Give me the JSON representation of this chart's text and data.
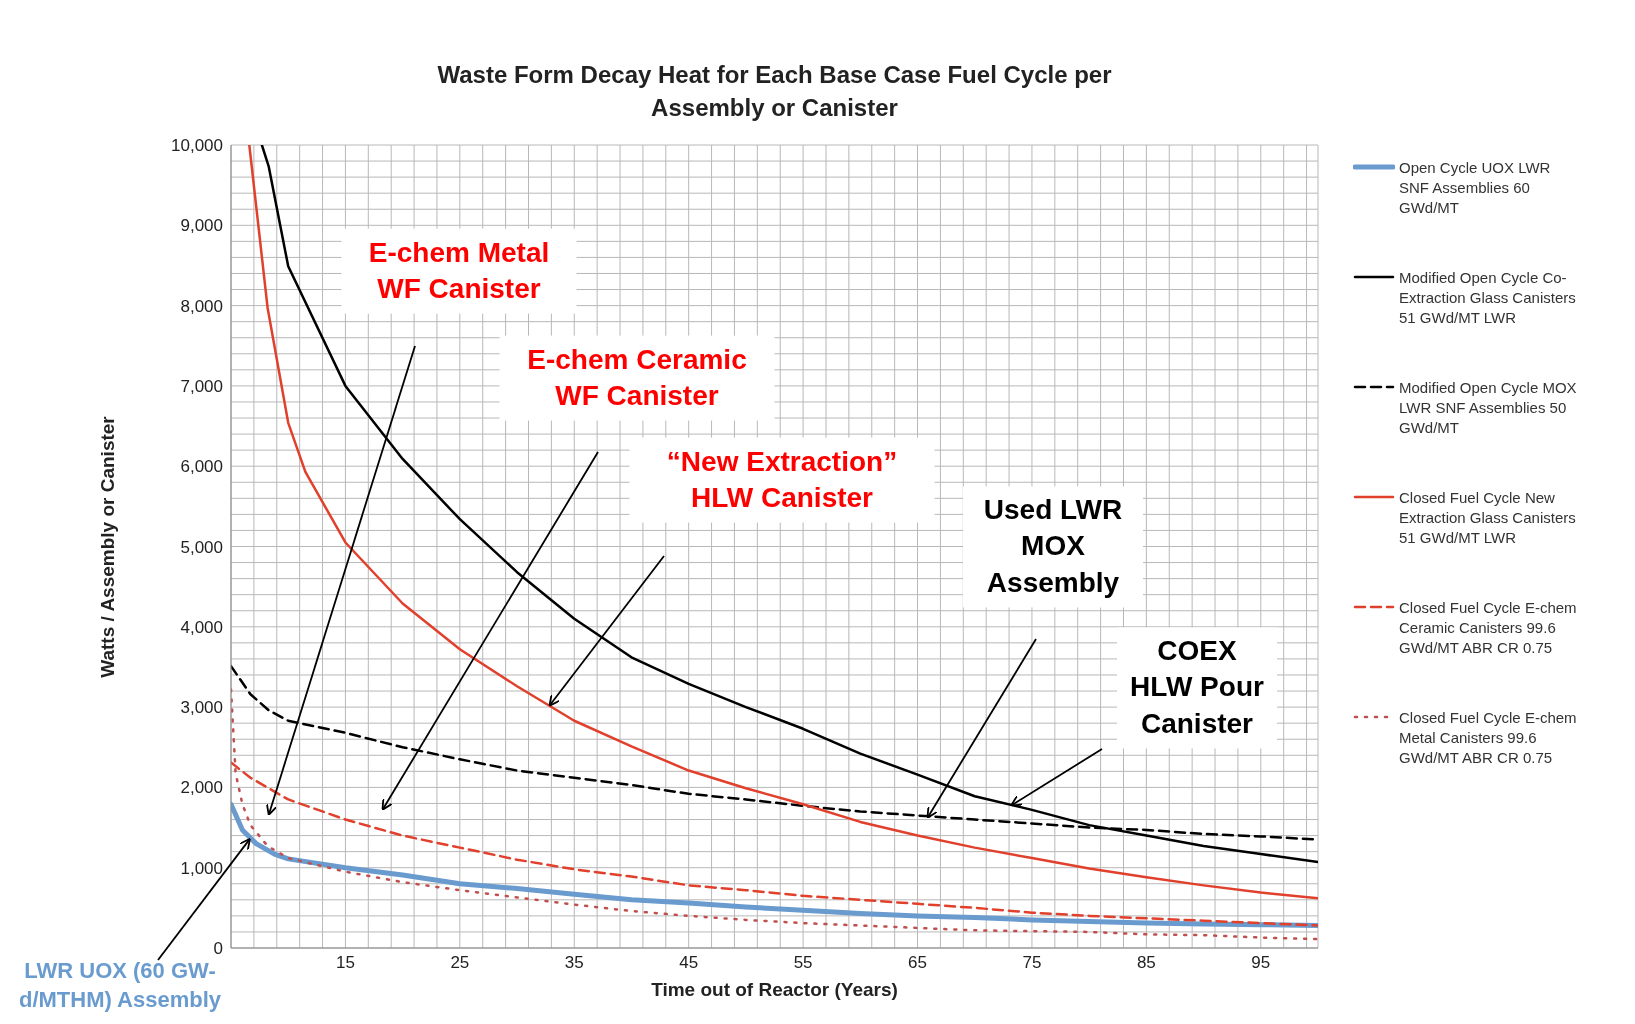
{
  "chart_data": {
    "type": "line",
    "title": "Waste Form Decay Heat for Each Base Case Fuel Cycle per Assembly or Canister",
    "xlabel": "Time out of Reactor (Years)",
    "ylabel": "Watts / Assembly or Canister",
    "xlim": [
      5,
      100
    ],
    "xticks": [
      {
        "value": 7,
        "label": null
      },
      {
        "value": 9,
        "label": null
      },
      {
        "value": 11,
        "label": null
      },
      {
        "value": 13,
        "label": null
      },
      15,
      {
        "value": 17,
        "label": null
      },
      {
        "value": 19,
        "label": null
      },
      {
        "value": 21,
        "label": null
      },
      {
        "value": 23,
        "label": null
      },
      25,
      {
        "value": 27,
        "label": null
      },
      {
        "value": 29,
        "label": null
      },
      {
        "value": 31,
        "label": null
      },
      {
        "value": 33,
        "label": null
      },
      35,
      {
        "value": 37,
        "label": null
      },
      {
        "value": 39,
        "label": null
      },
      {
        "value": 41,
        "label": null
      },
      {
        "value": 43,
        "label": null
      },
      45,
      {
        "value": 47,
        "label": null
      },
      {
        "value": 49,
        "label": null
      },
      {
        "value": 51,
        "label": null
      },
      {
        "value": 53,
        "label": null
      },
      55,
      {
        "value": 57,
        "label": null
      },
      {
        "value": 59,
        "label": null
      },
      {
        "value": 61,
        "label": null
      },
      {
        "value": 63,
        "label": null
      },
      65,
      {
        "value": 67,
        "label": null
      },
      {
        "value": 69,
        "label": null
      },
      {
        "value": 71,
        "label": null
      },
      {
        "value": 73,
        "label": null
      },
      75,
      {
        "value": 77,
        "label": null
      },
      {
        "value": 79,
        "label": null
      },
      {
        "value": 81,
        "label": null
      },
      {
        "value": 83,
        "label": null
      },
      85,
      {
        "value": 87,
        "label": null
      },
      {
        "value": 89,
        "label": null
      },
      {
        "value": 91,
        "label": null
      },
      {
        "value": 93,
        "label": null
      },
      95,
      {
        "value": 97,
        "label": null
      },
      {
        "value": 99,
        "label": null
      }
    ],
    "ylim": [
      0,
      10000
    ],
    "yticks": [
      0,
      {
        "value": 200,
        "label": null
      },
      {
        "value": 400,
        "label": null
      },
      {
        "value": 600,
        "label": null
      },
      {
        "value": 800,
        "label": null
      },
      {
        "value": 1000,
        "label": "1,000"
      },
      {
        "value": 1200,
        "label": null
      },
      {
        "value": 1400,
        "label": null
      },
      {
        "value": 1600,
        "label": null
      },
      {
        "value": 1800,
        "label": null
      },
      {
        "value": 2000,
        "label": "2,000"
      },
      {
        "value": 2200,
        "label": null
      },
      {
        "value": 2400,
        "label": null
      },
      {
        "value": 2600,
        "label": null
      },
      {
        "value": 2800,
        "label": null
      },
      {
        "value": 3000,
        "label": "3,000"
      },
      {
        "value": 3200,
        "label": null
      },
      {
        "value": 3400,
        "label": null
      },
      {
        "value": 3600,
        "label": null
      },
      {
        "value": 3800,
        "label": null
      },
      {
        "value": 4000,
        "label": "4,000"
      },
      {
        "value": 4200,
        "label": null
      },
      {
        "value": 4400,
        "label": null
      },
      {
        "value": 4600,
        "label": null
      },
      {
        "value": 4800,
        "label": null
      },
      {
        "value": 5000,
        "label": "5,000"
      },
      {
        "value": 5200,
        "label": null
      },
      {
        "value": 5400,
        "label": null
      },
      {
        "value": 5600,
        "label": null
      },
      {
        "value": 5800,
        "label": null
      },
      {
        "value": 6000,
        "label": "6,000"
      },
      {
        "value": 6200,
        "label": null
      },
      {
        "value": 6400,
        "label": null
      },
      {
        "value": 6600,
        "label": null
      },
      {
        "value": 6800,
        "label": null
      },
      {
        "value": 7000,
        "label": "7,000"
      },
      {
        "value": 7200,
        "label": null
      },
      {
        "value": 7400,
        "label": null
      },
      {
        "value": 7600,
        "label": null
      },
      {
        "value": 7800,
        "label": null
      },
      {
        "value": 8000,
        "label": "8,000"
      },
      {
        "value": 8200,
        "label": null
      },
      {
        "value": 8400,
        "label": null
      },
      {
        "value": 8600,
        "label": null
      },
      {
        "value": 8800,
        "label": null
      },
      {
        "value": 9000,
        "label": "9,000"
      },
      {
        "value": 9200,
        "label": null
      },
      {
        "value": 9400,
        "label": null
      },
      {
        "value": 9600,
        "label": null
      },
      {
        "value": 9800,
        "label": null
      },
      {
        "value": 10000,
        "label": "10,000"
      }
    ],
    "grid": true,
    "legend": "right",
    "series": [
      {
        "name": "Open Cycle UOX LWR SNF Assemblies 60 GWd/MT",
        "color": "#6a9bcf",
        "line_style": "solid",
        "x": [
          5,
          6,
          7.2,
          8.8,
          10,
          15,
          20,
          25,
          30,
          35,
          40,
          45,
          50,
          55,
          60,
          65,
          70,
          75,
          80,
          85,
          90,
          95,
          100
        ],
        "values": [
          1790,
          1470,
          1300,
          1170,
          1110,
          1000,
          910,
          800,
          740,
          670,
          600,
          560,
          510,
          470,
          430,
          400,
          380,
          350,
          330,
          310,
          300,
          290,
          280
        ]
      },
      {
        "name": "Modified Open Cycle Co-Extraction Glass Canisters 51 GWd/MT LWR",
        "color": "#000000",
        "line_style": "solid",
        "x": [
          7.7,
          8.3,
          10,
          15,
          20,
          25,
          30,
          35,
          40,
          45,
          50,
          55,
          60,
          65,
          70,
          75,
          80,
          85,
          90,
          95,
          100
        ],
        "values": [
          10000,
          9730,
          8490,
          7000,
          6090,
          5340,
          4680,
          4100,
          3620,
          3290,
          3000,
          2730,
          2420,
          2160,
          1890,
          1720,
          1530,
          1400,
          1270,
          1170,
          1070
        ]
      },
      {
        "name": "Modified Open Cycle MOX LWR SNF Assemblies 50 GWd/MT",
        "color": "#000000",
        "line_style": "dashed",
        "x": [
          5,
          6.7,
          8.3,
          10,
          15,
          20,
          25,
          30,
          35,
          40,
          45,
          50,
          55,
          60,
          65,
          70,
          75,
          80,
          85,
          90,
          95,
          100
        ],
        "values": [
          3510,
          3160,
          2960,
          2830,
          2680,
          2500,
          2350,
          2210,
          2120,
          2030,
          1920,
          1850,
          1770,
          1700,
          1650,
          1600,
          1550,
          1500,
          1470,
          1420,
          1390,
          1350
        ]
      },
      {
        "name": "Closed Fuel Cycle New Extraction Glass Canisters 51 GWd/MT LWR",
        "color": "#e0402c",
        "line_style": "solid",
        "x": [
          6.6,
          8.2,
          10,
          11.5,
          15,
          20,
          25,
          30,
          35,
          40,
          45,
          50,
          55,
          60,
          65,
          70,
          75,
          80,
          85,
          90,
          95,
          100
        ],
        "values": [
          10000,
          7970,
          6540,
          5930,
          5050,
          4290,
          3720,
          3260,
          2830,
          2510,
          2210,
          1990,
          1790,
          1570,
          1400,
          1250,
          1120,
          990,
          880,
          780,
          690,
          620
        ]
      },
      {
        "name": "Closed Fuel Cycle E-chem Ceramic Canisters 99.6 GWd/MT ABR CR 0.75",
        "color": "#e0402c",
        "line_style": "dashed",
        "x": [
          5,
          6.7,
          10,
          15,
          20,
          25,
          30,
          35,
          40,
          45,
          50,
          55,
          60,
          65,
          70,
          75,
          80,
          85,
          90,
          95,
          100
        ],
        "values": [
          2310,
          2120,
          1850,
          1600,
          1400,
          1250,
          1100,
          980,
          890,
          780,
          720,
          650,
          600,
          550,
          500,
          440,
          400,
          370,
          340,
          310,
          280
        ]
      },
      {
        "name": "Closed Fuel Cycle E-chem Metal Canisters 99.6 GWd/MT ABR CR 0.75",
        "color": "#c0504d",
        "line_style": "dotted",
        "x": [
          5,
          5.4,
          6,
          6.7,
          8.2,
          10,
          15,
          20,
          25,
          30,
          35,
          40,
          45,
          50,
          55,
          60,
          65,
          70,
          75,
          80,
          85,
          90,
          95,
          100
        ],
        "values": [
          3220,
          2180,
          1790,
          1530,
          1270,
          1120,
          950,
          820,
          720,
          630,
          540,
          460,
          400,
          350,
          310,
          280,
          250,
          220,
          210,
          200,
          170,
          160,
          130,
          110
        ]
      }
    ],
    "annotations": [
      "E-chem Metal WF Canister",
      "E-chem Ceramic WF Canister",
      "“New Extraction” HLW Canister",
      "Used LWR MOX Assembly",
      "COEX HLW Pour Canister",
      {
        "text": "LWR UOX (60 GW-d/MTHM) Assembly",
        "x": 6.6,
        "y": 1350
      }
    ]
  }
}
